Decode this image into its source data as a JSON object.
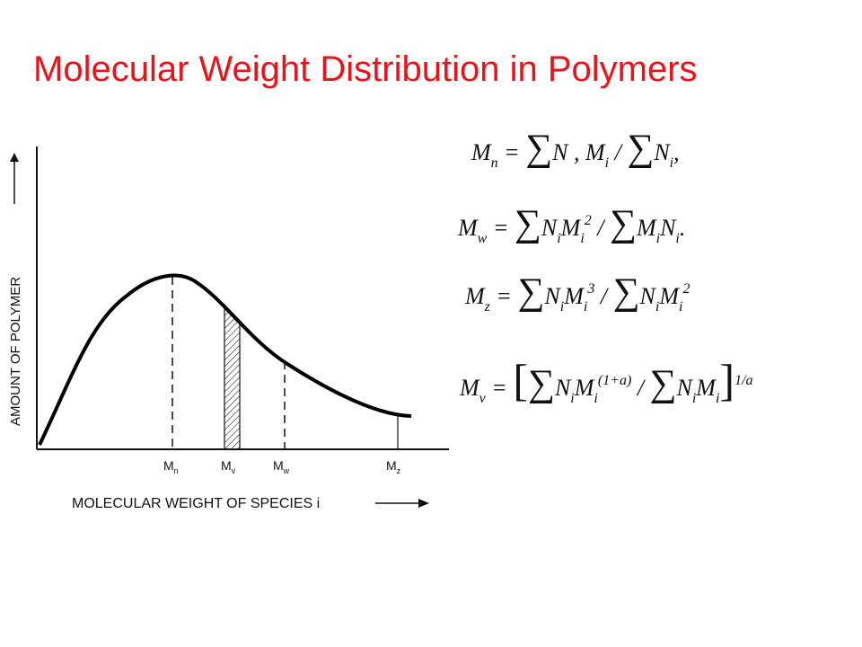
{
  "header": {
    "title": "Molecular Weight Distribution in Polymers"
  },
  "diagram": {
    "y_axis_label": "AMOUNT OF POLYMER",
    "x_axis_label": "MOLECULAR WEIGHT OF SPECIES i",
    "markers": [
      {
        "base": "M",
        "sub": "n"
      },
      {
        "base": "M",
        "sub": "v"
      },
      {
        "base": "M",
        "sub": "w"
      },
      {
        "base": "M",
        "sub": "z"
      }
    ]
  },
  "equations": [
    [
      {
        "text": "M"
      },
      {
        "text": "n",
        "style": "sub"
      },
      {
        "text": " = "
      },
      {
        "text": "∑",
        "style": "op"
      },
      {
        "text": "N , M"
      },
      {
        "text": "i",
        "style": "sub"
      },
      {
        "text": " / "
      },
      {
        "text": "∑",
        "style": "op"
      },
      {
        "text": "N"
      },
      {
        "text": "i",
        "style": "sub"
      },
      {
        "text": ","
      }
    ],
    [
      {
        "text": "M"
      },
      {
        "text": "w",
        "style": "sub"
      },
      {
        "text": " = "
      },
      {
        "text": "∑",
        "style": "op"
      },
      {
        "text": "N"
      },
      {
        "text": "i",
        "style": "sub"
      },
      {
        "text": "M"
      },
      {
        "text": "i",
        "style": "sub"
      },
      {
        "text": "2",
        "style": "sup"
      },
      {
        "text": " / "
      },
      {
        "text": "∑",
        "style": "op"
      },
      {
        "text": "M"
      },
      {
        "text": "i",
        "style": "sub"
      },
      {
        "text": "N"
      },
      {
        "text": "i",
        "style": "sub"
      },
      {
        "text": "."
      }
    ],
    [
      {
        "text": "M"
      },
      {
        "text": "z",
        "style": "sub"
      },
      {
        "text": " = "
      },
      {
        "text": "∑",
        "style": "op"
      },
      {
        "text": "N"
      },
      {
        "text": "i",
        "style": "sub"
      },
      {
        "text": "M"
      },
      {
        "text": "i",
        "style": "sub"
      },
      {
        "text": "3",
        "style": "sup"
      },
      {
        "text": " / "
      },
      {
        "text": "∑",
        "style": "op"
      },
      {
        "text": "N"
      },
      {
        "text": "i",
        "style": "sub"
      },
      {
        "text": "M"
      },
      {
        "text": "i",
        "style": "sub"
      },
      {
        "text": "2",
        "style": "sup"
      }
    ],
    [
      {
        "text": "M"
      },
      {
        "text": "v",
        "style": "sub"
      },
      {
        "text": " = "
      },
      {
        "text": "[",
        "style": "big"
      },
      {
        "text": "∑",
        "style": "op"
      },
      {
        "text": "N"
      },
      {
        "text": "i",
        "style": "sub"
      },
      {
        "text": "M"
      },
      {
        "text": "i",
        "style": "sub"
      },
      {
        "text": "(1+a)",
        "style": "sup"
      },
      {
        "text": " / "
      },
      {
        "text": "∑",
        "style": "op"
      },
      {
        "text": "N"
      },
      {
        "text": "i",
        "style": "sub"
      },
      {
        "text": "M"
      },
      {
        "text": "i",
        "style": "sub"
      },
      {
        "text": "]",
        "style": "big"
      },
      {
        "text": "1/a",
        "style": "sup"
      }
    ]
  ]
}
